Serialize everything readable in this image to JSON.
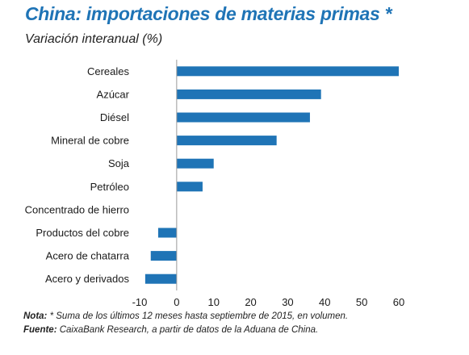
{
  "title": "China: importaciones de materias primas *",
  "subtitle": "Variación interanual (%)",
  "colors": {
    "bar": "#1f74b6",
    "title": "#1f74b6",
    "axis": "#9a9a9a"
  },
  "chart_data": {
    "type": "bar",
    "orientation": "horizontal",
    "categories": [
      "Cereales",
      "Azúcar",
      "Diésel",
      "Mineral de cobre",
      "Soja",
      "Petróleo",
      "Concentrado de hierro",
      "Productos del cobre",
      "Acero de chatarra",
      "Acero y derivados"
    ],
    "values": [
      60,
      39,
      36,
      27,
      10,
      7,
      0,
      -5,
      -7,
      -8.5
    ],
    "xlim": [
      -10,
      60
    ],
    "xticks": [
      "-10",
      "0",
      "10",
      "20",
      "30",
      "40",
      "50",
      "60"
    ],
    "xtick_values": [
      -10,
      0,
      10,
      20,
      30,
      40,
      50,
      60
    ],
    "grid": false,
    "legend": "none"
  },
  "notes": {
    "nota_label": "Nota:",
    "nota_text": " * Suma de los últimos 12 meses hasta septiembre de 2015, en volumen.",
    "fuente_label": "Fuente:",
    "fuente_text": " CaixaBank Research, a partir de datos de la Aduana de China."
  }
}
